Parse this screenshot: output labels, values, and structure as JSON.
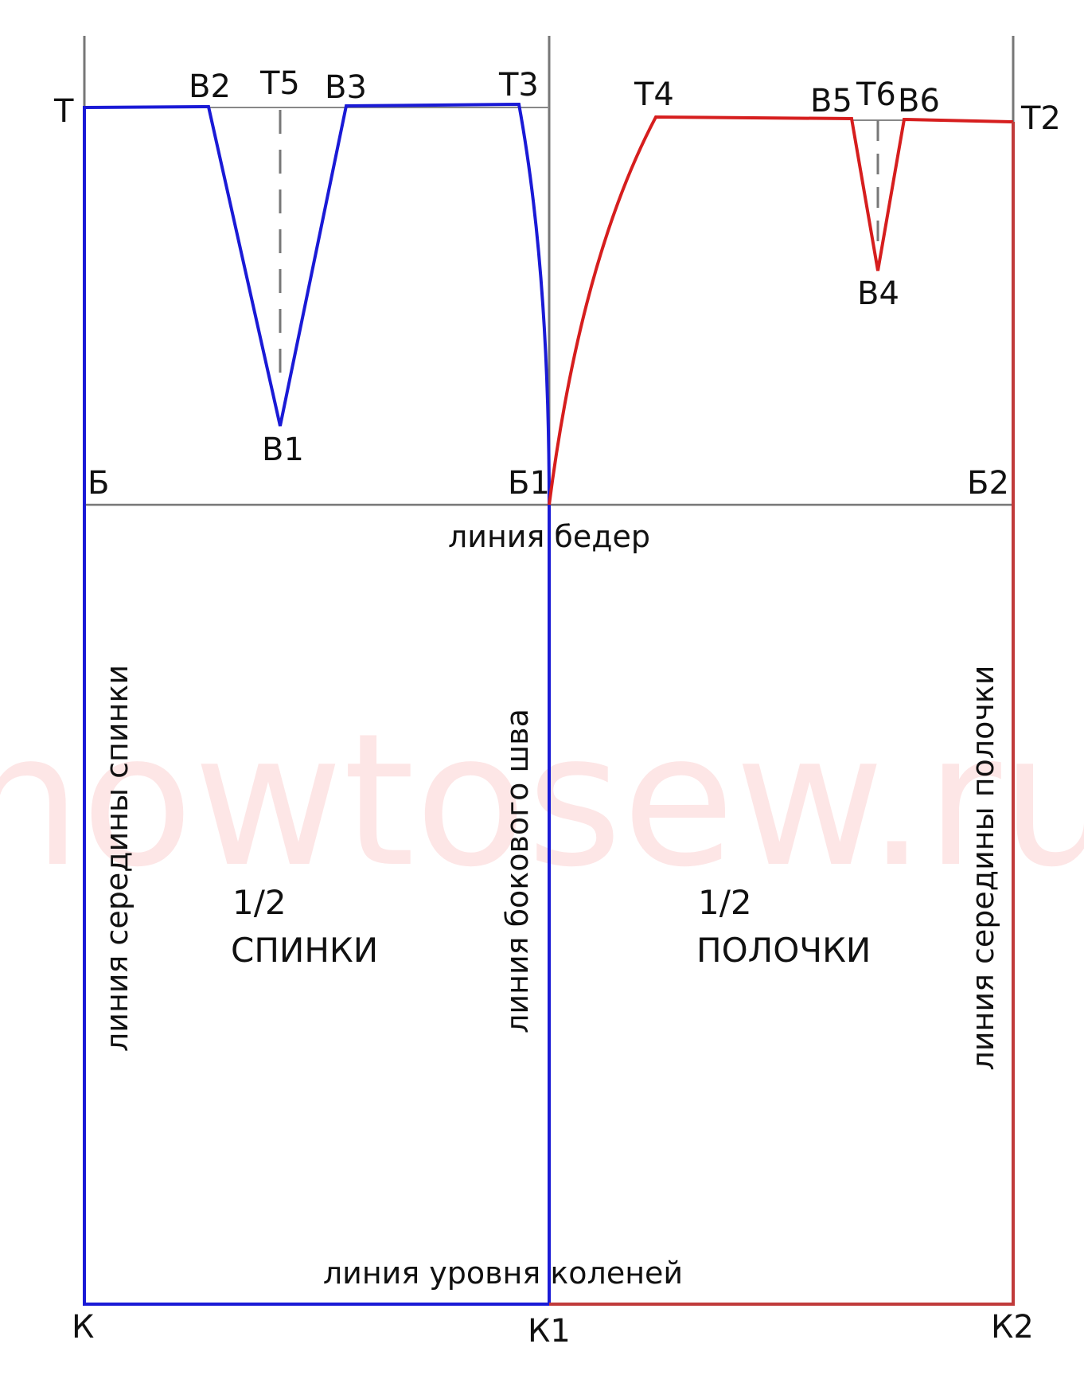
{
  "watermark": "howtosew.ru",
  "colors": {
    "back": "#1a1ad6",
    "front": "#d61e1e",
    "front_edge": "#c03a3a",
    "guide": "#777777"
  },
  "points": {
    "T": "Т",
    "B2": "В2",
    "T5": "Т5",
    "B3": "В3",
    "T3": "Т3",
    "T4": "Т4",
    "B5": "В5",
    "T6": "Т6",
    "B6": "В6",
    "T2": "Т2",
    "B1": "В1",
    "B4": "В4",
    "Bb": "Б",
    "Bb1": "Б1",
    "Bb2": "Б2",
    "K": "К",
    "K1": "К1",
    "K2": "К2"
  },
  "lines": {
    "hip": "линия бедер",
    "knee": "линия уровня коленей",
    "side_seam": "линия бокового шва",
    "back_center": "линия середины спинки",
    "front_center": "линия середины полочки"
  },
  "panels": {
    "back": {
      "fraction": "1/2",
      "name": "СПИНКИ"
    },
    "front": {
      "fraction": "1/2",
      "name": "ПОЛОЧКИ"
    }
  }
}
